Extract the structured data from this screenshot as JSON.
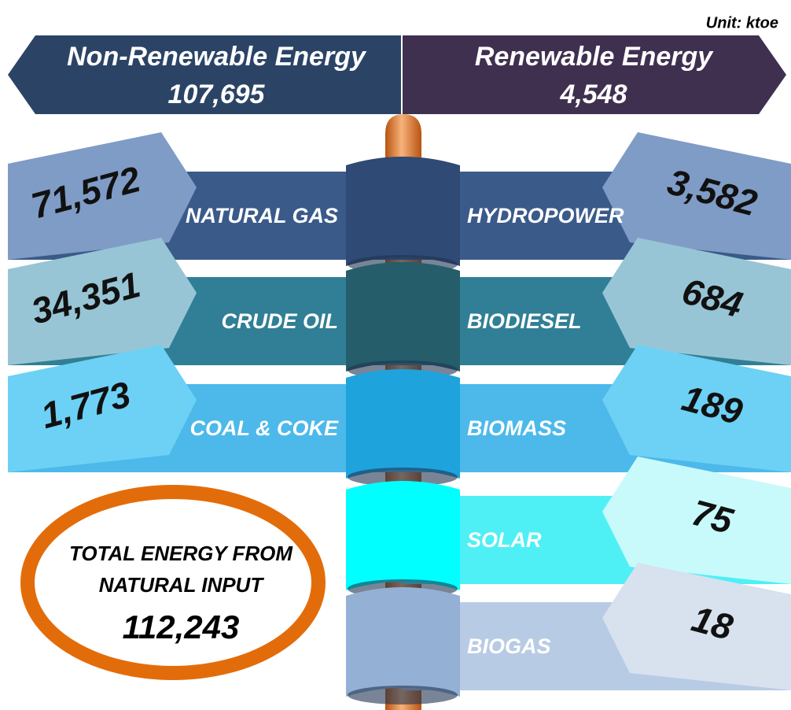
{
  "unit": "Unit: ktoe",
  "non_renewable": {
    "label": "Non-Renewable Energy",
    "value": "107,695"
  },
  "renewable": {
    "label": "Renewable Energy",
    "value": "4,548"
  },
  "left_items": [
    {
      "label": "NATURAL GAS",
      "value": "71,572"
    },
    {
      "label": "CRUDE OIL",
      "value": "34,351"
    },
    {
      "label": "COAL & COKE",
      "value": "1,773"
    }
  ],
  "right_items": [
    {
      "label": "HYDROPOWER",
      "value": "3,582"
    },
    {
      "label": "BIODIESEL",
      "value": "684"
    },
    {
      "label": "BIOMASS",
      "value": "189"
    },
    {
      "label": "SOLAR",
      "value": "75"
    },
    {
      "label": "BIOGAS",
      "value": "18"
    }
  ],
  "total": {
    "lines": [
      "TOTAL ENERGY FROM",
      "NATURAL INPUT"
    ],
    "value": "112,243"
  }
}
